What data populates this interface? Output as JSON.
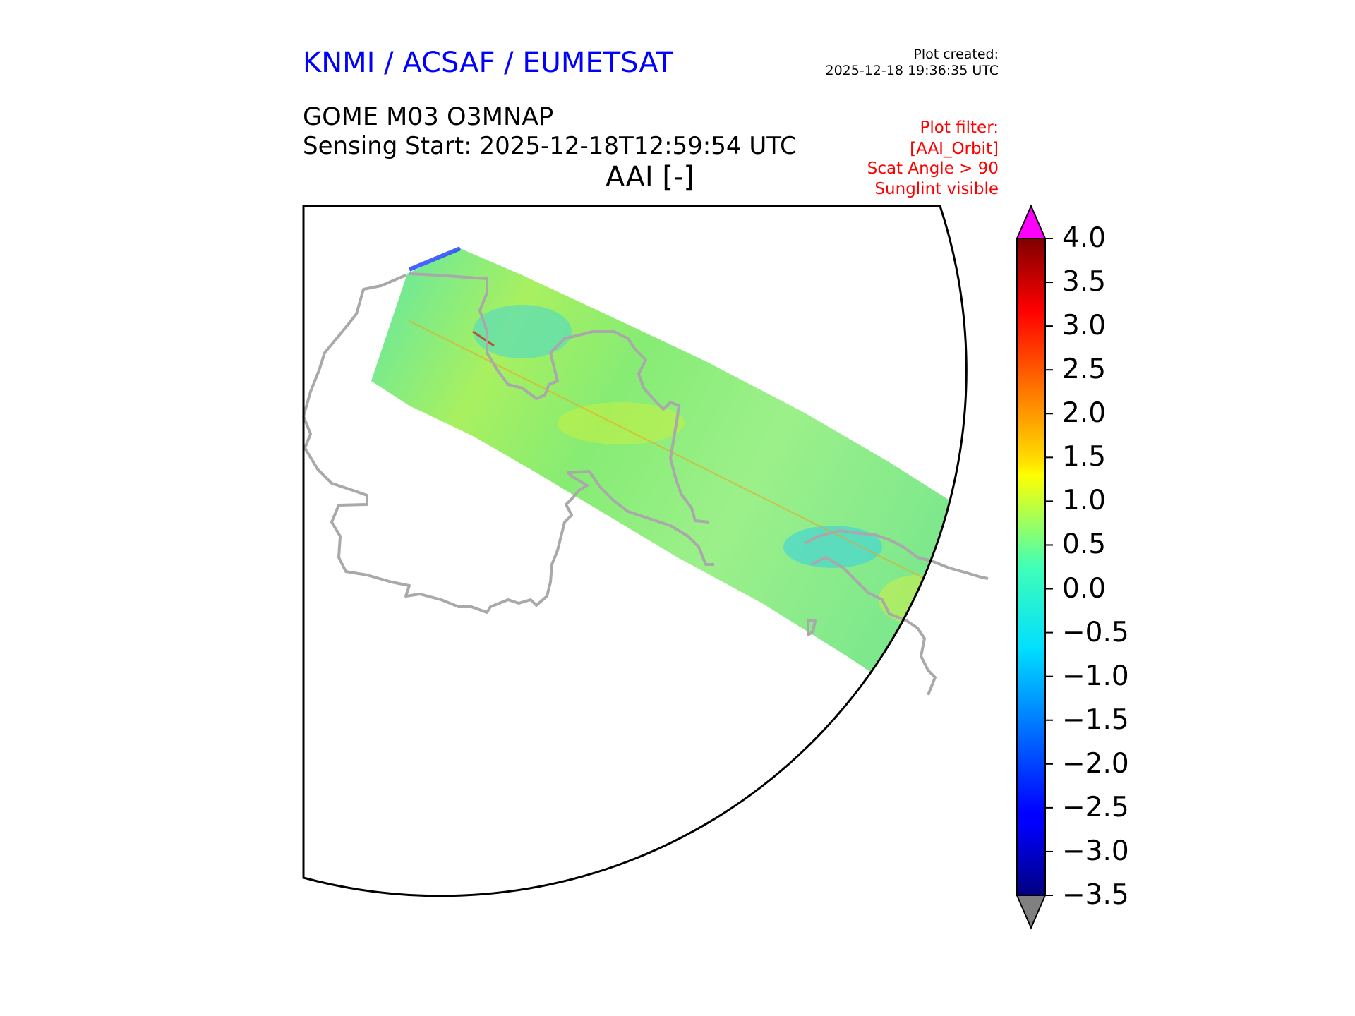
{
  "header": {
    "organization": "KNMI / ACSAF / EUMETSAT",
    "plot_created_label": "Plot created:",
    "plot_created_time": "2025-12-18 19:36:35 UTC",
    "product": "GOME M03 O3MNAP",
    "sensing_start": "Sensing Start: 2025-12-18T12:59:54 UTC",
    "variable": "AAI [-]"
  },
  "filters": [
    "Plot filter:",
    "[AAI_Orbit]",
    "Scat Angle > 90",
    "Sunglint visible"
  ],
  "colorbar": {
    "min": -3.5,
    "max": 4.0,
    "ticks": [
      "4.0",
      "3.5",
      "3.0",
      "2.5",
      "2.0",
      "1.5",
      "1.0",
      "0.5",
      "0.0",
      "−0.5",
      "−1.0",
      "−1.5",
      "−2.0",
      "−2.5",
      "−3.0",
      "−3.5"
    ],
    "over_color": "#ff00ff",
    "under_color": "#808080",
    "colormap": "jet"
  },
  "colors": {
    "coastline": "#a9a9a9",
    "swath_dominant": "#66ee88"
  }
}
